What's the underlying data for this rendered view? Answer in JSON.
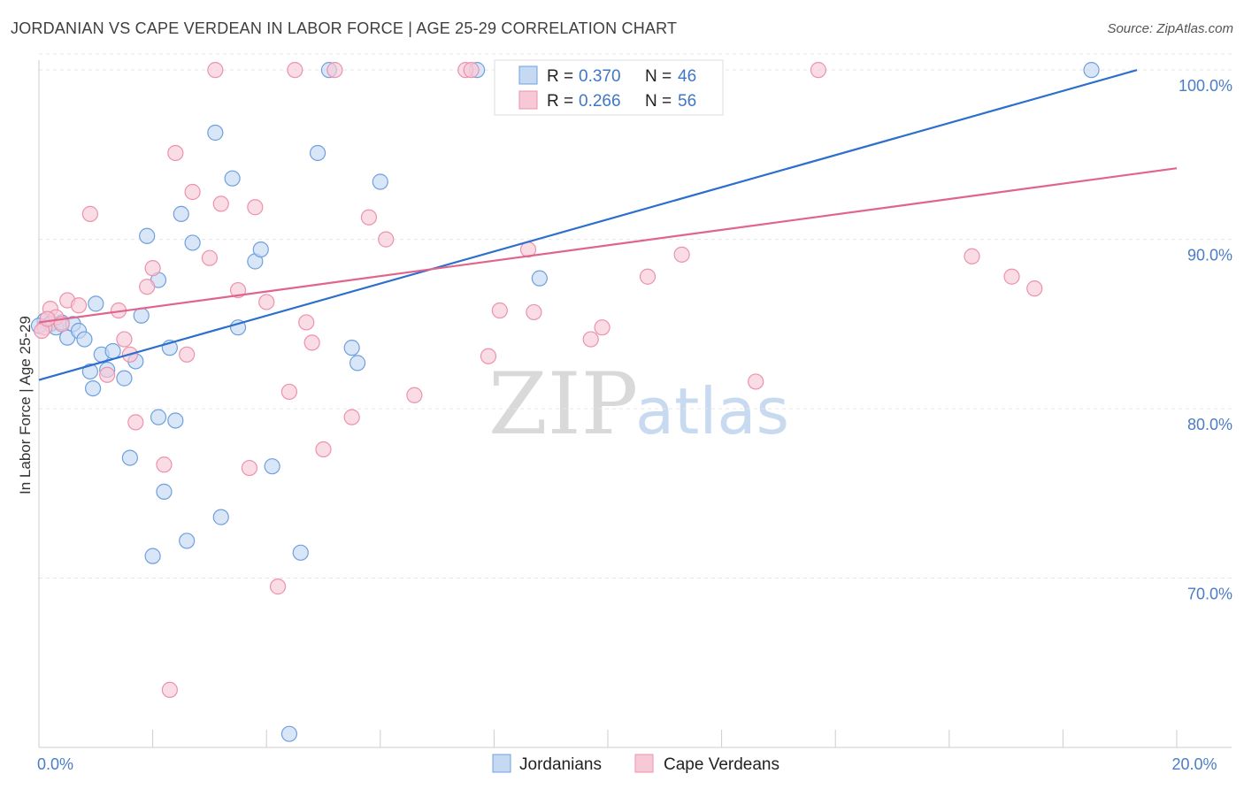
{
  "title": "JORDANIAN VS CAPE VERDEAN IN LABOR FORCE | AGE 25-29 CORRELATION CHART",
  "source": "Source: ZipAtlas.com",
  "watermark": {
    "zip": "ZIP",
    "atlas": "atlas"
  },
  "chart_data": {
    "type": "scatter",
    "ylabel": "In Labor Force | Age 25-29",
    "xlim": [
      0,
      20
    ],
    "ylim": [
      60,
      101
    ],
    "x_tick_labels": [
      {
        "value": 0,
        "label": "0.0%"
      },
      {
        "value": 20,
        "label": "20.0%"
      }
    ],
    "y_tick_labels": [
      {
        "value": 100,
        "label": "100.0%"
      },
      {
        "value": 90,
        "label": "90.0%"
      },
      {
        "value": 80,
        "label": "80.0%"
      },
      {
        "value": 70,
        "label": "70.0%"
      }
    ],
    "x_minor_ticks": [
      0,
      2,
      4,
      6,
      8,
      10,
      12,
      14,
      16,
      18,
      20
    ],
    "grid": "horizontal-dashed",
    "legend": {
      "placement": "top-center",
      "entries": [
        {
          "r_label": "R = ",
          "r": "0.370",
          "n_label": "N = ",
          "n": "46"
        },
        {
          "r_label": "R = ",
          "r": "0.266",
          "n_label": "N = ",
          "n": "56"
        }
      ]
    },
    "series": [
      {
        "name": "Jordanians",
        "color": "#6fa0dc",
        "fill": "#c5d9f3",
        "line_color": "#2c6fcc",
        "trend": {
          "x": [
            0,
            19.3
          ],
          "y": [
            81.7,
            100.0
          ]
        },
        "points": [
          [
            0.1,
            85.2
          ],
          [
            0.2,
            85.0
          ],
          [
            0.3,
            84.8
          ],
          [
            0.4,
            85.1
          ],
          [
            0.5,
            84.2
          ],
          [
            0.6,
            85.0
          ],
          [
            0.7,
            84.6
          ],
          [
            0.8,
            84.1
          ],
          [
            0.9,
            82.2
          ],
          [
            0.95,
            81.2
          ],
          [
            1.0,
            86.2
          ],
          [
            1.1,
            83.2
          ],
          [
            1.2,
            82.3
          ],
          [
            1.3,
            83.4
          ],
          [
            1.5,
            81.8
          ],
          [
            1.6,
            77.1
          ],
          [
            1.7,
            82.8
          ],
          [
            1.8,
            85.5
          ],
          [
            1.9,
            90.2
          ],
          [
            2.0,
            71.3
          ],
          [
            2.1,
            87.6
          ],
          [
            2.1,
            79.5
          ],
          [
            2.2,
            75.1
          ],
          [
            2.3,
            83.6
          ],
          [
            2.4,
            79.3
          ],
          [
            2.5,
            91.5
          ],
          [
            2.6,
            72.2
          ],
          [
            2.7,
            89.8
          ],
          [
            3.1,
            96.3
          ],
          [
            3.2,
            73.6
          ],
          [
            3.4,
            93.6
          ],
          [
            3.5,
            84.8
          ],
          [
            3.8,
            88.7
          ],
          [
            3.9,
            89.4
          ],
          [
            4.1,
            76.6
          ],
          [
            4.4,
            60.8
          ],
          [
            4.6,
            71.5
          ],
          [
            4.9,
            95.1
          ],
          [
            5.1,
            100.0
          ],
          [
            5.5,
            83.6
          ],
          [
            5.6,
            82.7
          ],
          [
            6.0,
            93.4
          ],
          [
            7.7,
            100.0
          ],
          [
            8.8,
            87.7
          ],
          [
            18.5,
            100.0
          ],
          [
            0.0,
            84.9
          ]
        ]
      },
      {
        "name": "Cape Verdeans",
        "color": "#ec92ae",
        "fill": "#f7c9d7",
        "line_color": "#e0648c",
        "trend": {
          "x": [
            0,
            20.0
          ],
          "y": [
            85.1,
            94.2
          ]
        },
        "points": [
          [
            0.1,
            84.8
          ],
          [
            0.2,
            85.9
          ],
          [
            0.3,
            85.4
          ],
          [
            0.4,
            85.0
          ],
          [
            0.5,
            86.4
          ],
          [
            0.7,
            86.1
          ],
          [
            0.9,
            91.5
          ],
          [
            1.2,
            82.0
          ],
          [
            1.4,
            85.8
          ],
          [
            1.5,
            84.1
          ],
          [
            1.6,
            83.2
          ],
          [
            1.7,
            79.2
          ],
          [
            1.9,
            87.2
          ],
          [
            2.0,
            88.3
          ],
          [
            2.2,
            76.7
          ],
          [
            2.3,
            63.4
          ],
          [
            2.4,
            95.1
          ],
          [
            2.6,
            83.2
          ],
          [
            2.7,
            92.8
          ],
          [
            3.0,
            88.9
          ],
          [
            3.1,
            100.0
          ],
          [
            3.2,
            92.1
          ],
          [
            3.5,
            87.0
          ],
          [
            3.7,
            76.5
          ],
          [
            3.8,
            91.9
          ],
          [
            4.0,
            86.3
          ],
          [
            4.2,
            69.5
          ],
          [
            4.4,
            81.0
          ],
          [
            4.5,
            100.0
          ],
          [
            4.7,
            85.1
          ],
          [
            4.8,
            83.9
          ],
          [
            5.0,
            77.6
          ],
          [
            5.2,
            100.0
          ],
          [
            5.5,
            79.5
          ],
          [
            5.8,
            91.3
          ],
          [
            6.1,
            90.0
          ],
          [
            6.6,
            80.8
          ],
          [
            7.5,
            100.0
          ],
          [
            7.6,
            100.0
          ],
          [
            7.9,
            83.1
          ],
          [
            8.1,
            85.8
          ],
          [
            8.5,
            100.0
          ],
          [
            8.6,
            89.4
          ],
          [
            8.7,
            85.7
          ],
          [
            9.7,
            84.1
          ],
          [
            9.9,
            84.8
          ],
          [
            10.7,
            87.8
          ],
          [
            11.0,
            100.0
          ],
          [
            11.3,
            89.1
          ],
          [
            12.6,
            81.6
          ],
          [
            13.7,
            100.0
          ],
          [
            16.4,
            89.0
          ],
          [
            17.1,
            87.8
          ],
          [
            17.5,
            87.1
          ],
          [
            0.05,
            84.6
          ],
          [
            0.15,
            85.3
          ]
        ]
      }
    ]
  }
}
